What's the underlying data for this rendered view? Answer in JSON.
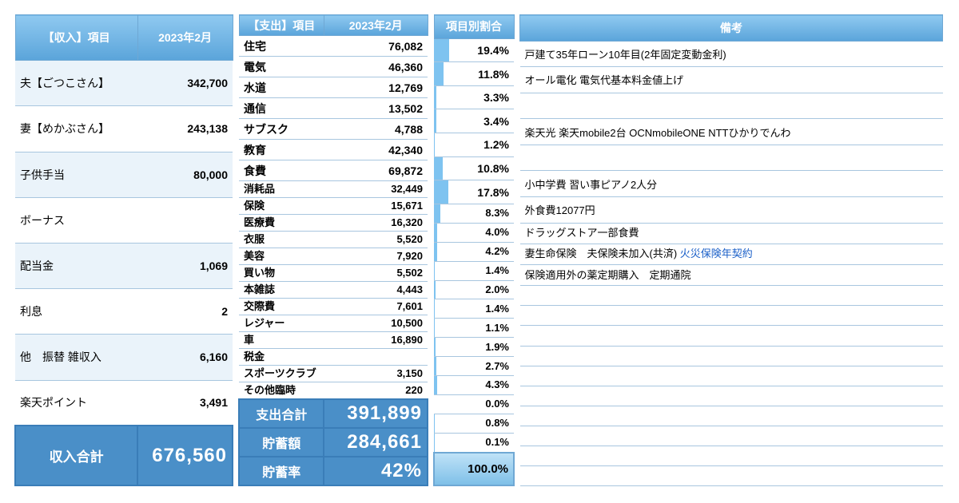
{
  "period": "2023年2月",
  "colors": {
    "header_grad_top": "#8fc9f0",
    "header_grad_bot": "#5aa4da",
    "header_border": "#6fa8d4",
    "row_border": "#a8c6df",
    "alt_row": "#eaf3fa",
    "total_bg": "#4a8fc8",
    "total_border": "#3a7db8",
    "bar_fill": "#7ec3f0",
    "link": "#1a5fc8"
  },
  "income": {
    "header_item": "【収入】項目",
    "rows": [
      {
        "label": "夫【ごつこさん】",
        "value": "342,700",
        "alt": true
      },
      {
        "label": "妻【めかぶさん】",
        "value": "243,138",
        "alt": false
      },
      {
        "label": "子供手当",
        "value": "80,000",
        "alt": true
      },
      {
        "label": "ボーナス",
        "value": "",
        "alt": false
      },
      {
        "label": "配当金",
        "value": "1,069",
        "alt": true
      },
      {
        "label": "利息",
        "value": "2",
        "alt": false
      },
      {
        "label": "他　振替 雑収入",
        "value": "6,160",
        "alt": true
      },
      {
        "label": "楽天ポイント",
        "value": "3,491",
        "alt": false
      }
    ],
    "total_label": "収入合計",
    "total_value": "676,560"
  },
  "expense": {
    "header_item": "【支出】項目",
    "pct_header": "項目別割合",
    "note_header": "備考",
    "rows": [
      {
        "big": true,
        "label": "住宅",
        "value": "76,082",
        "pct": "19.4%",
        "bar": 19.4,
        "note": "戸建て35年ローン10年目(2年固定変動金利)"
      },
      {
        "big": true,
        "label": "電気",
        "value": "46,360",
        "pct": "11.8%",
        "bar": 11.8,
        "note": "オール電化 電気代基本料金値上げ"
      },
      {
        "big": true,
        "label": "水道",
        "value": "12,769",
        "pct": "3.3%",
        "bar": 3.3,
        "note": ""
      },
      {
        "big": true,
        "label": "通信",
        "value": "13,502",
        "pct": "3.4%",
        "bar": 3.4,
        "note": "楽天光 楽天mobile2台 OCNmobileONE NTTひかりでんわ"
      },
      {
        "big": true,
        "label": "サブスク",
        "value": "4,788",
        "pct": "1.2%",
        "bar": 1.2,
        "note": ""
      },
      {
        "big": true,
        "label": "教育",
        "value": "42,340",
        "pct": "10.8%",
        "bar": 10.8,
        "note": "小中学費 習い事ピアノ2人分"
      },
      {
        "big": true,
        "label": "食費",
        "value": "69,872",
        "pct": "17.8%",
        "bar": 17.8,
        "note": "外食費12077円"
      },
      {
        "big": false,
        "label": "消耗品",
        "value": "32,449",
        "pct": "8.3%",
        "bar": 8.3,
        "note": "ドラッグストア一部食費"
      },
      {
        "big": false,
        "label": "保険",
        "value": "15,671",
        "pct": "4.0%",
        "bar": 4.0,
        "note": "妻生命保険　夫保険未加入(共済) ",
        "note_link": "火災保険年契約"
      },
      {
        "big": false,
        "label": "医療費",
        "value": "16,320",
        "pct": "4.2%",
        "bar": 4.2,
        "note": "保険適用外の薬定期購入　定期通院"
      },
      {
        "big": false,
        "label": "衣服",
        "value": "5,520",
        "pct": "1.4%",
        "bar": 1.4,
        "note": ""
      },
      {
        "big": false,
        "label": "美容",
        "value": "7,920",
        "pct": "2.0%",
        "bar": 2.0,
        "note": ""
      },
      {
        "big": false,
        "label": "買い物",
        "value": "5,502",
        "pct": "1.4%",
        "bar": 1.4,
        "note": ""
      },
      {
        "big": false,
        "label": "本雑誌",
        "value": "4,443",
        "pct": "1.1%",
        "bar": 1.1,
        "note": ""
      },
      {
        "big": false,
        "label": "交際費",
        "value": "7,601",
        "pct": "1.9%",
        "bar": 1.9,
        "note": ""
      },
      {
        "big": false,
        "label": "レジャー",
        "value": "10,500",
        "pct": "2.7%",
        "bar": 2.7,
        "note": ""
      },
      {
        "big": false,
        "label": "車",
        "value": "16,890",
        "pct": "4.3%",
        "bar": 4.3,
        "note": ""
      },
      {
        "big": false,
        "label": "税金",
        "value": "",
        "pct": "0.0%",
        "bar": 0.0,
        "note": ""
      },
      {
        "big": false,
        "label": "スポーツクラブ",
        "value": "3,150",
        "pct": "0.8%",
        "bar": 0.8,
        "note": ""
      },
      {
        "big": false,
        "label": "その他臨時",
        "value": "220",
        "pct": "0.1%",
        "bar": 0.1,
        "note": ""
      }
    ],
    "totals": [
      {
        "label": "支出合計",
        "value": "391,899",
        "pct": "100.0%"
      },
      {
        "label": "貯蓄額",
        "value": "284,661"
      },
      {
        "label": "貯蓄率",
        "value": "42%"
      }
    ],
    "pct_bar_max": 100
  }
}
